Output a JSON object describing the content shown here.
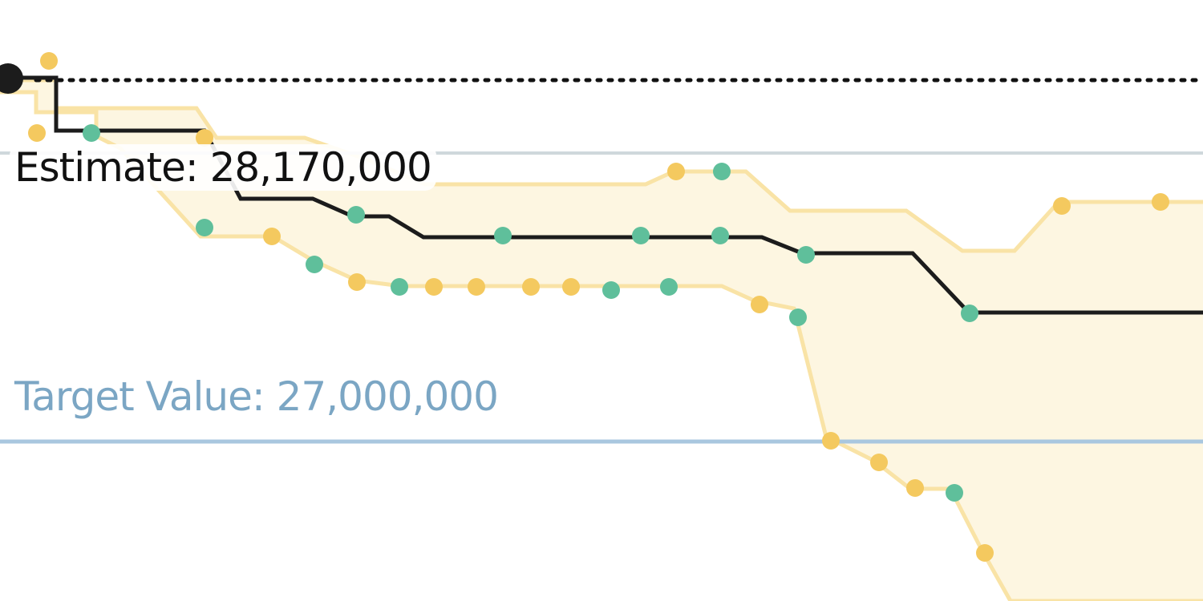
{
  "chart_data": {
    "type": "line",
    "estimate": {
      "label": "Estimate: 28,170,000",
      "value": 28170000
    },
    "target": {
      "label": "Target Value: 27,000,000",
      "value": 27000000
    },
    "colors": {
      "estimate_line": "#1c1c1c",
      "band_fill": "#fdf6e1",
      "band_edge": "#f9e3a6",
      "yellow_point": "#f4c95f",
      "green_point": "#5fbf9b",
      "target_line": "#a9c7df",
      "target_text": "#7ba6c4",
      "grey_line": "#cfd8dc",
      "dotted_line": "#111111"
    }
  }
}
